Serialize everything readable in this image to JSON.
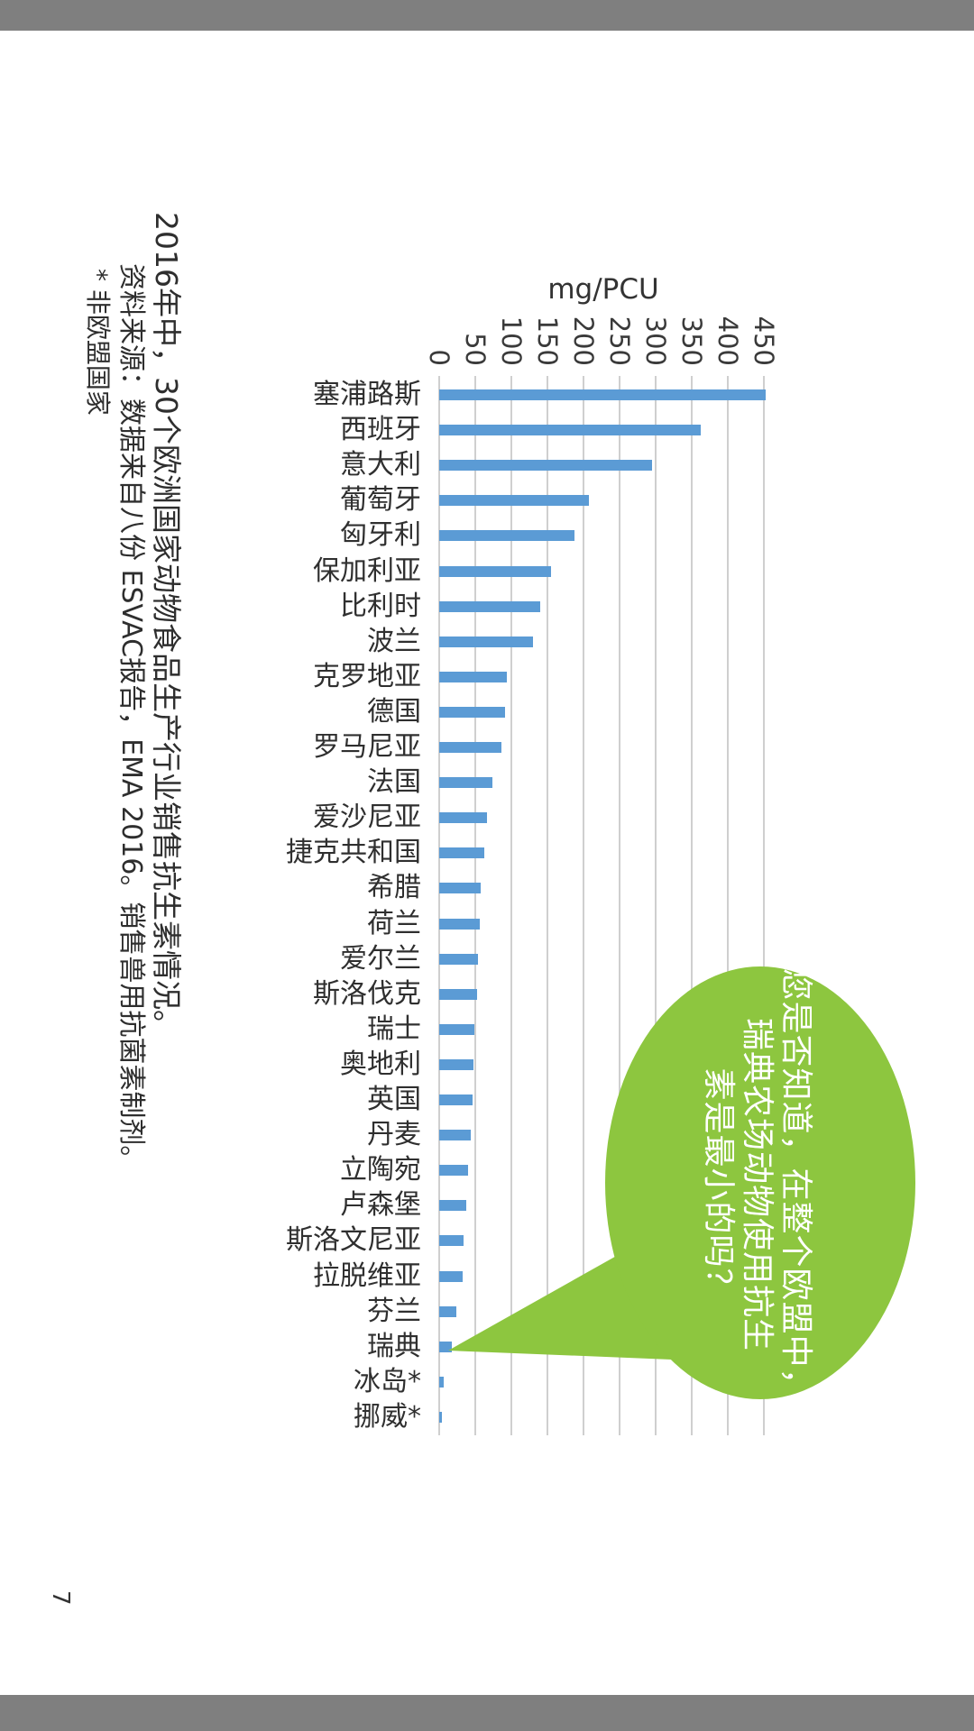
{
  "page": {
    "number": "7",
    "frame_color": "#7f7f7f",
    "background": "#ffffff"
  },
  "caption": "2016年中，30个欧洲国家动物食品生产行业销售抗生素情况。",
  "source": "资料来源：数据来自八份 ESVAC报告，EMA 2016。销售兽用抗菌素制剂。",
  "footnote": "* 非欧盟国家",
  "speech_bubble": {
    "lines": [
      "您是否知道，在整个欧盟中，",
      "瑞典农场动物使用抗生",
      "素是最小的吗？"
    ],
    "color": "#8dc63f",
    "text_color": "#ffffff",
    "points_to": "瑞典"
  },
  "chart_data": {
    "type": "bar",
    "value_axis_label": "mg/PCU",
    "axis_ticks": [
      0,
      50,
      100,
      150,
      200,
      250,
      300,
      350,
      400,
      450
    ],
    "ylim": [
      0,
      450
    ],
    "grid": true,
    "legend": "none",
    "layout_note": "landscape column chart, page rotated 90deg clockwise in screenshot; category labels rotated 90deg",
    "bar_color": "#5b9bd5",
    "grid_color": "#cfcfcf",
    "categories": [
      "塞浦路斯",
      "西班牙",
      "意大利",
      "葡萄牙",
      "匈牙利",
      "保加利亚",
      "比利时",
      "波兰",
      "克罗地亚",
      "德国",
      "罗马尼亚",
      "法国",
      "爱沙尼亚",
      "捷克共和国",
      "希腊",
      "荷兰",
      "爱尔兰",
      "斯洛伐克",
      "瑞士",
      "奥地利",
      "英国",
      "丹麦",
      "立陶宛",
      "卢森堡",
      "斯洛文尼亚",
      "拉脱维亚",
      "芬兰",
      "瑞典",
      "冰岛*",
      "挪威*"
    ],
    "values": [
      453,
      362,
      295,
      208,
      187,
      155,
      140,
      130,
      94,
      91,
      86,
      74,
      66,
      62,
      58,
      56,
      54,
      52,
      49,
      47,
      46,
      44,
      40,
      37,
      34,
      33,
      24,
      18,
      6,
      4
    ]
  }
}
